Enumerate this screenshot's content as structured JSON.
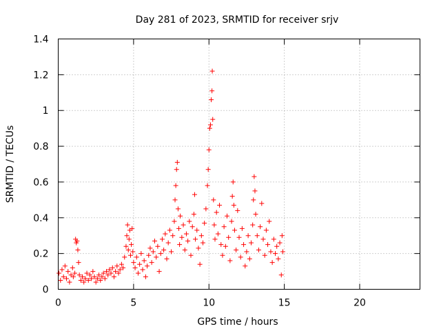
{
  "chart_data": {
    "type": "scatter",
    "title": "Day 281 of 2023, SRMTID for receiver srjv",
    "xlabel": "GPS time / hours",
    "ylabel": "SRMTID / TECUs",
    "xlim": [
      0,
      24
    ],
    "ylim": [
      0,
      1.4
    ],
    "xticks": [
      0,
      5,
      10,
      15,
      20
    ],
    "yticks": [
      0,
      0.2,
      0.4,
      0.6,
      0.8,
      1,
      1.2,
      1.4
    ],
    "xtick_labels": [
      "0",
      "5",
      "10",
      "15",
      "20"
    ],
    "ytick_labels": [
      "0",
      "0.2",
      "0.4",
      "0.6",
      "0.8",
      "1",
      "1.2",
      "1.4"
    ],
    "grid": true,
    "marker": "+",
    "color": "#ff0000",
    "series": [
      {
        "name": "SRMTID",
        "points": [
          [
            0.05,
            0.09
          ],
          [
            0.15,
            0.05
          ],
          [
            0.25,
            0.11
          ],
          [
            0.35,
            0.07
          ],
          [
            0.45,
            0.13
          ],
          [
            0.55,
            0.06
          ],
          [
            0.65,
            0.1
          ],
          [
            0.75,
            0.04
          ],
          [
            0.85,
            0.08
          ],
          [
            0.95,
            0.12
          ],
          [
            1.0,
            0.07
          ],
          [
            1.1,
            0.09
          ],
          [
            1.15,
            0.28
          ],
          [
            1.2,
            0.26
          ],
          [
            1.25,
            0.27
          ],
          [
            1.3,
            0.22
          ],
          [
            1.35,
            0.15
          ],
          [
            1.4,
            0.08
          ],
          [
            1.5,
            0.05
          ],
          [
            1.6,
            0.07
          ],
          [
            1.7,
            0.04
          ],
          [
            1.8,
            0.06
          ],
          [
            1.9,
            0.09
          ],
          [
            2.0,
            0.05
          ],
          [
            2.1,
            0.08
          ],
          [
            2.2,
            0.06
          ],
          [
            2.3,
            0.1
          ],
          [
            2.4,
            0.07
          ],
          [
            2.5,
            0.04
          ],
          [
            2.6,
            0.06
          ],
          [
            2.7,
            0.08
          ],
          [
            2.8,
            0.05
          ],
          [
            2.9,
            0.07
          ],
          [
            3.0,
            0.09
          ],
          [
            3.1,
            0.06
          ],
          [
            3.2,
            0.1
          ],
          [
            3.3,
            0.08
          ],
          [
            3.4,
            0.11
          ],
          [
            3.5,
            0.09
          ],
          [
            3.6,
            0.12
          ],
          [
            3.7,
            0.07
          ],
          [
            3.8,
            0.1
          ],
          [
            3.9,
            0.13
          ],
          [
            4.0,
            0.09
          ],
          [
            4.1,
            0.11
          ],
          [
            4.2,
            0.14
          ],
          [
            4.3,
            0.12
          ],
          [
            4.4,
            0.18
          ],
          [
            4.5,
            0.24
          ],
          [
            4.55,
            0.3
          ],
          [
            4.6,
            0.36
          ],
          [
            4.65,
            0.22
          ],
          [
            4.7,
            0.28
          ],
          [
            4.75,
            0.33
          ],
          [
            4.8,
            0.19
          ],
          [
            4.85,
            0.25
          ],
          [
            4.9,
            0.34
          ],
          [
            4.95,
            0.21
          ],
          [
            5.0,
            0.15
          ],
          [
            5.1,
            0.12
          ],
          [
            5.2,
            0.18
          ],
          [
            5.3,
            0.09
          ],
          [
            5.4,
            0.14
          ],
          [
            5.5,
            0.2
          ],
          [
            5.6,
            0.11
          ],
          [
            5.7,
            0.16
          ],
          [
            5.8,
            0.07
          ],
          [
            5.9,
            0.13
          ],
          [
            6.0,
            0.19
          ],
          [
            6.1,
            0.23
          ],
          [
            6.2,
            0.15
          ],
          [
            6.3,
            0.21
          ],
          [
            6.4,
            0.27
          ],
          [
            6.5,
            0.18
          ],
          [
            6.6,
            0.24
          ],
          [
            6.7,
            0.1
          ],
          [
            6.8,
            0.2
          ],
          [
            6.9,
            0.28
          ],
          [
            7.0,
            0.22
          ],
          [
            7.1,
            0.31
          ],
          [
            7.2,
            0.17
          ],
          [
            7.3,
            0.26
          ],
          [
            7.4,
            0.33
          ],
          [
            7.5,
            0.21
          ],
          [
            7.6,
            0.3
          ],
          [
            7.7,
            0.38
          ],
          [
            7.75,
            0.5
          ],
          [
            7.8,
            0.58
          ],
          [
            7.85,
            0.67
          ],
          [
            7.9,
            0.71
          ],
          [
            7.95,
            0.45
          ],
          [
            8.0,
            0.34
          ],
          [
            8.05,
            0.25
          ],
          [
            8.1,
            0.41
          ],
          [
            8.2,
            0.29
          ],
          [
            8.3,
            0.36
          ],
          [
            8.4,
            0.22
          ],
          [
            8.5,
            0.31
          ],
          [
            8.6,
            0.27
          ],
          [
            8.7,
            0.38
          ],
          [
            8.8,
            0.19
          ],
          [
            8.9,
            0.35
          ],
          [
            9.0,
            0.42
          ],
          [
            9.05,
            0.53
          ],
          [
            9.1,
            0.28
          ],
          [
            9.2,
            0.33
          ],
          [
            9.3,
            0.23
          ],
          [
            9.4,
            0.14
          ],
          [
            9.5,
            0.3
          ],
          [
            9.6,
            0.26
          ],
          [
            9.7,
            0.37
          ],
          [
            9.8,
            0.45
          ],
          [
            9.9,
            0.58
          ],
          [
            9.95,
            0.67
          ],
          [
            10.0,
            0.78
          ],
          [
            10.05,
            0.9
          ],
          [
            10.1,
            0.92
          ],
          [
            10.15,
            1.06
          ],
          [
            10.2,
            1.11
          ],
          [
            10.22,
            1.22
          ],
          [
            10.25,
            0.95
          ],
          [
            10.3,
            0.5
          ],
          [
            10.35,
            0.36
          ],
          [
            10.4,
            0.28
          ],
          [
            10.5,
            0.43
          ],
          [
            10.6,
            0.31
          ],
          [
            10.7,
            0.47
          ],
          [
            10.8,
            0.25
          ],
          [
            10.9,
            0.19
          ],
          [
            11.0,
            0.35
          ],
          [
            11.1,
            0.24
          ],
          [
            11.2,
            0.41
          ],
          [
            11.3,
            0.29
          ],
          [
            11.4,
            0.16
          ],
          [
            11.5,
            0.38
          ],
          [
            11.55,
            0.52
          ],
          [
            11.6,
            0.6
          ],
          [
            11.65,
            0.47
          ],
          [
            11.7,
            0.33
          ],
          [
            11.8,
            0.22
          ],
          [
            11.9,
            0.44
          ],
          [
            12.0,
            0.29
          ],
          [
            12.1,
            0.18
          ],
          [
            12.2,
            0.34
          ],
          [
            12.3,
            0.25
          ],
          [
            12.4,
            0.13
          ],
          [
            12.5,
            0.21
          ],
          [
            12.6,
            0.3
          ],
          [
            12.7,
            0.17
          ],
          [
            12.8,
            0.26
          ],
          [
            12.9,
            0.36
          ],
          [
            12.95,
            0.5
          ],
          [
            13.0,
            0.63
          ],
          [
            13.05,
            0.55
          ],
          [
            13.1,
            0.42
          ],
          [
            13.2,
            0.3
          ],
          [
            13.3,
            0.22
          ],
          [
            13.4,
            0.35
          ],
          [
            13.5,
            0.48
          ],
          [
            13.6,
            0.28
          ],
          [
            13.7,
            0.19
          ],
          [
            13.8,
            0.33
          ],
          [
            13.9,
            0.25
          ],
          [
            14.0,
            0.38
          ],
          [
            14.1,
            0.21
          ],
          [
            14.2,
            0.15
          ],
          [
            14.3,
            0.28
          ],
          [
            14.4,
            0.2
          ],
          [
            14.5,
            0.24
          ],
          [
            14.6,
            0.17
          ],
          [
            14.7,
            0.26
          ],
          [
            14.8,
            0.08
          ],
          [
            14.85,
            0.3
          ],
          [
            14.9,
            0.21
          ]
        ]
      }
    ]
  }
}
